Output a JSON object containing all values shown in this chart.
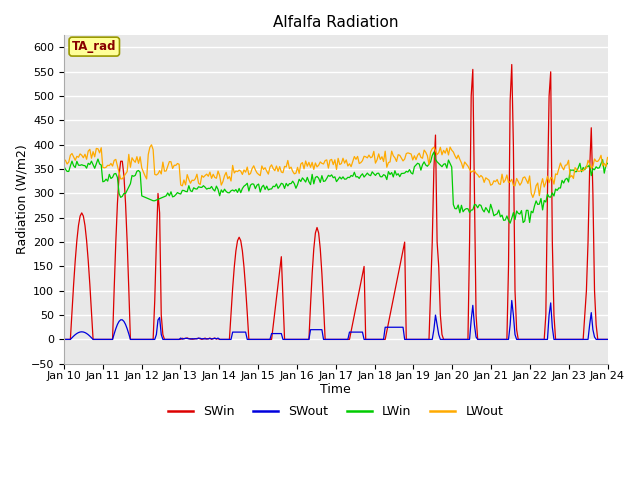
{
  "title": "Alfalfa Radiation",
  "xlabel": "Time",
  "ylabel": "Radiation (W/m2)",
  "ylim": [
    -50,
    625
  ],
  "xtick_labels": [
    "Jan 10",
    "Jan 11",
    "Jan 12",
    "Jan 13",
    "Jan 14",
    "Jan 15",
    "Jan 16",
    "Jan 17",
    "Jan 18",
    "Jan 19",
    "Jan 20",
    "Jan 21",
    "Jan 22",
    "Jan 23",
    "Jan 24"
  ],
  "colors": {
    "SWin": "#dd0000",
    "SWout": "#0000dd",
    "LWin": "#00cc00",
    "LWout": "#ffaa00"
  },
  "fig_bg": "#ffffff",
  "plot_bg": "#e8e8e8",
  "grid_color": "#ffffff",
  "legend_label": "TA_rad",
  "legend_box_facecolor": "#ffff99",
  "legend_box_edgecolor": "#999900",
  "legend_text_color": "#880000",
  "title_fontsize": 11,
  "axis_label_fontsize": 9,
  "tick_fontsize": 8
}
